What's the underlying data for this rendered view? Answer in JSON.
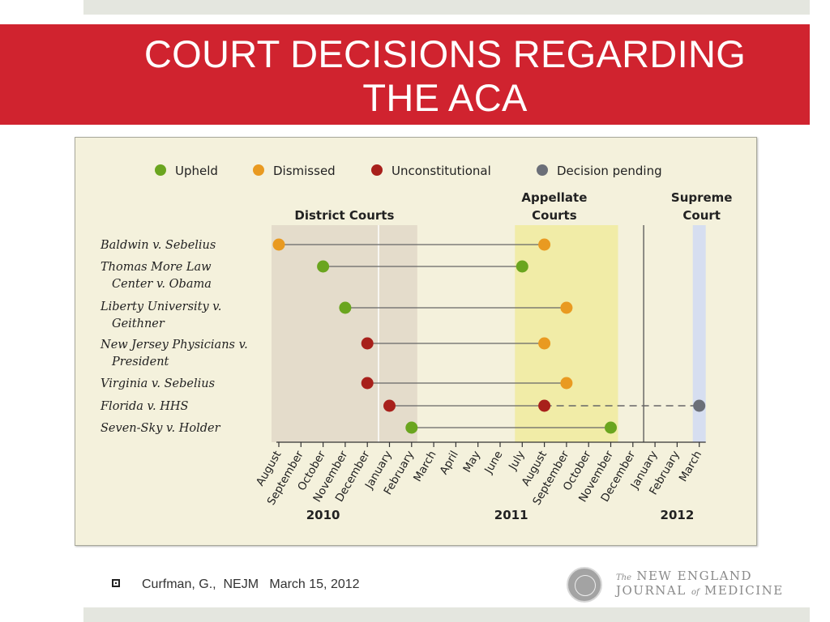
{
  "slide": {
    "title_line1": "COURT DECISIONS REGARDING",
    "title_line2": "THE ACA"
  },
  "colors": {
    "banner": "#d0232f",
    "upheld": "#6aa51f",
    "dismissed": "#e99a21",
    "unconstitutional": "#a8201b",
    "pending": "#6b6f78",
    "district_band": "#e4dccb",
    "appellate_band": "#f1eca7",
    "supreme_band": "#d6def0"
  },
  "footer": {
    "citation": "Curfman, G.,  NEJM   March 15, 2012",
    "logo_the": "The",
    "logo_line1": "NEW ENGLAND",
    "logo_journal": "JOURNAL",
    "logo_of": "of",
    "logo_medicine": "MEDICINE"
  },
  "chart_data": {
    "type": "timeline",
    "legend": [
      {
        "label": "Upheld",
        "status": "upheld",
        "color": "#6aa51f"
      },
      {
        "label": "Dismissed",
        "status": "dismissed",
        "color": "#e99a21"
      },
      {
        "label": "Unconstitutional",
        "status": "unconstitutional",
        "color": "#a8201b"
      },
      {
        "label": "Decision pending",
        "status": "pending",
        "color": "#6b6f78"
      }
    ],
    "legend_placement": "top",
    "court_sections": [
      {
        "label_lines": [
          "District Courts"
        ],
        "start": "2010-08",
        "end": "2011-02"
      },
      {
        "label_lines": [
          "Appellate",
          "Courts"
        ],
        "start": "2011-07",
        "end": "2011-11"
      },
      {
        "label_lines": [
          "Supreme",
          "Court"
        ],
        "start": "2012-03",
        "end": "2012-03"
      }
    ],
    "months": [
      "August",
      "September",
      "October",
      "November",
      "December",
      "January",
      "February",
      "March",
      "April",
      "May",
      "June",
      "July",
      "August",
      "September",
      "October",
      "November",
      "December",
      "January",
      "February",
      "March"
    ],
    "month_dates": [
      "2010-08",
      "2010-09",
      "2010-10",
      "2010-11",
      "2010-12",
      "2011-01",
      "2011-02",
      "2011-03",
      "2011-04",
      "2011-05",
      "2011-06",
      "2011-07",
      "2011-08",
      "2011-09",
      "2011-10",
      "2011-11",
      "2011-12",
      "2012-01",
      "2012-02",
      "2012-03"
    ],
    "years": [
      {
        "label": "2010",
        "start": "2010-08",
        "end": "2010-12"
      },
      {
        "label": "2011",
        "start": "2011-01",
        "end": "2011-12"
      },
      {
        "label": "2012",
        "start": "2012-01",
        "end": "2012-03"
      }
    ],
    "cases": [
      {
        "name_lines": [
          "Baldwin v. Sebelius"
        ],
        "district": {
          "date": "2010-08",
          "status": "dismissed"
        },
        "appellate": {
          "date": "2011-08",
          "status": "dismissed"
        }
      },
      {
        "name_lines": [
          "Thomas More Law",
          "Center v. Obama"
        ],
        "district": {
          "date": "2010-10",
          "status": "upheld"
        },
        "appellate": {
          "date": "2011-07",
          "status": "upheld"
        }
      },
      {
        "name_lines": [
          "Liberty University v.",
          "Geithner"
        ],
        "district": {
          "date": "2010-11",
          "status": "upheld"
        },
        "appellate": {
          "date": "2011-09",
          "status": "dismissed"
        }
      },
      {
        "name_lines": [
          "New Jersey Physicians v.",
          "President"
        ],
        "district": {
          "date": "2010-12",
          "status": "unconstitutional"
        },
        "appellate": {
          "date": "2011-08",
          "status": "dismissed"
        }
      },
      {
        "name_lines": [
          "Virginia v. Sebelius"
        ],
        "district": {
          "date": "2010-12",
          "status": "unconstitutional"
        },
        "appellate": {
          "date": "2011-09",
          "status": "dismissed"
        }
      },
      {
        "name_lines": [
          "Florida v. HHS"
        ],
        "district": {
          "date": "2011-01",
          "status": "unconstitutional"
        },
        "appellate": {
          "date": "2011-08",
          "status": "unconstitutional"
        },
        "supreme": {
          "date": "2012-03",
          "status": "pending"
        }
      },
      {
        "name_lines": [
          "Seven-Sky v. Holder"
        ],
        "district": {
          "date": "2011-02",
          "status": "upheld"
        },
        "appellate": {
          "date": "2011-11",
          "status": "upheld"
        }
      }
    ]
  }
}
